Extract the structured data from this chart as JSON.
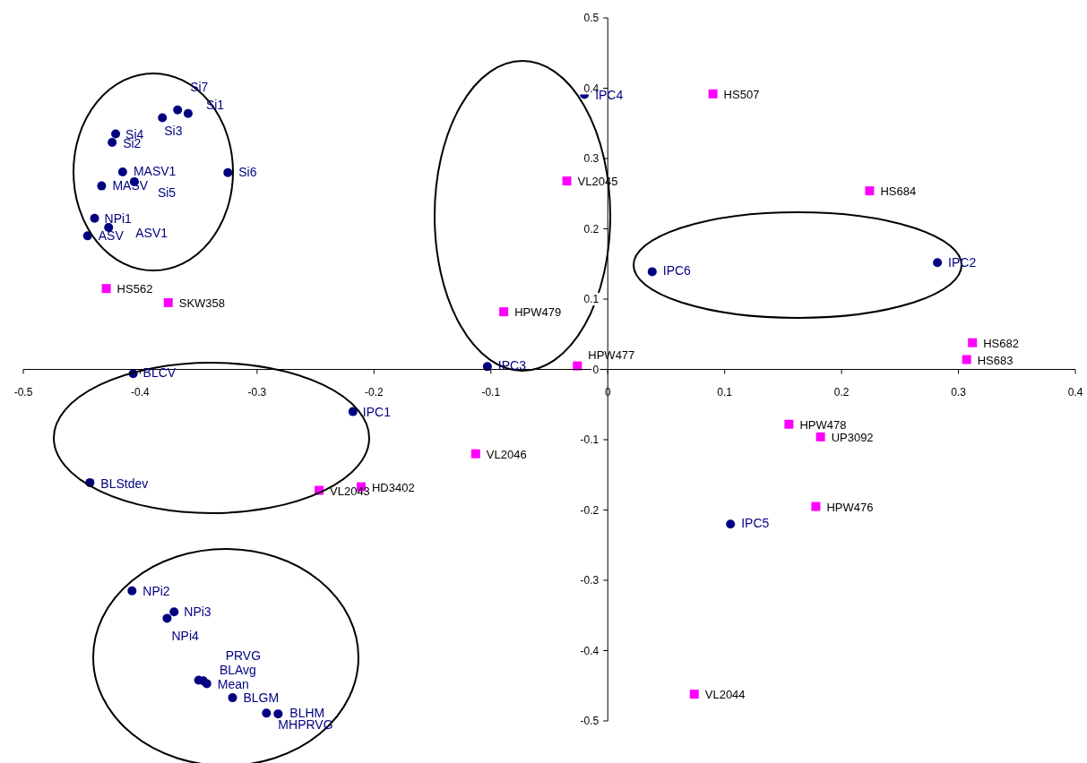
{
  "chart_data": {
    "type": "scatter",
    "xlim": [
      -0.5,
      0.4
    ],
    "ylim": [
      -0.5,
      0.5
    ],
    "xticks": [
      -0.5,
      -0.4,
      -0.3,
      -0.2,
      -0.1,
      0,
      0.1,
      0.2,
      0.3,
      0.4
    ],
    "yticks": [
      -0.5,
      -0.4,
      -0.3,
      -0.2,
      -0.1,
      0,
      0.1,
      0.2,
      0.3,
      0.4,
      0.5
    ],
    "grid": false,
    "legend": false,
    "series": [
      {
        "color": "#000080",
        "marker": "circle",
        "x": [
          -0.368,
          -0.359,
          -0.381,
          -0.421,
          -0.424,
          -0.415,
          -0.405,
          -0.433,
          -0.325,
          -0.439,
          -0.427,
          -0.445,
          -0.406,
          -0.218,
          -0.443,
          -0.407,
          -0.371,
          -0.377,
          -0.35,
          -0.346,
          -0.343,
          -0.321,
          -0.292,
          -0.282,
          -0.02,
          0.038,
          -0.103,
          0.282,
          0.105
        ],
        "values": [
          0.369,
          0.364,
          0.358,
          0.335,
          0.323,
          0.281,
          0.267,
          0.261,
          0.28,
          0.215,
          0.202,
          0.19,
          -0.006,
          -0.06,
          -0.161,
          -0.315,
          -0.345,
          -0.354,
          -0.442,
          -0.443,
          -0.447,
          -0.467,
          -0.489,
          -0.49,
          0.391,
          0.139,
          0.004,
          0.152,
          -0.22
        ],
        "value_labels": [
          "Si7",
          "Si1",
          "Si3",
          "Si4",
          "Si2",
          "MASV1",
          "Si5",
          "MASV",
          "Si6",
          "NPi1",
          "ASV1",
          "ASV",
          "BLCV",
          "IPC1",
          "BLStdev",
          "NPi2",
          "NPi3",
          "NPi4",
          "PRVG",
          "BLAvg",
          "Mean",
          "BLGM",
          "BLHM",
          "MHPRVG",
          "IPC4",
          "IPC6",
          "IPC3",
          "IPC2",
          "IPC5"
        ]
      },
      {
        "color": "#ff00ff",
        "marker": "square",
        "x": [
          -0.429,
          -0.376,
          -0.247,
          -0.211,
          0.09,
          -0.035,
          -0.089,
          -0.026,
          0.224,
          0.312,
          0.307,
          -0.113,
          0.155,
          0.182,
          0.178,
          0.074
        ],
        "values": [
          0.115,
          0.095,
          -0.172,
          -0.167,
          0.392,
          0.268,
          0.082,
          0.005,
          0.254,
          0.038,
          0.014,
          -0.12,
          -0.078,
          -0.096,
          -0.195,
          -0.462
        ],
        "value_labels": [
          "HS562",
          "SKW358",
          "VL2043",
          "HD3402",
          "HS507",
          "VL2045",
          "HPW479",
          "HPW477",
          "HS684",
          "HS682",
          "HS683",
          "VL2046",
          "HPW478",
          "UP3092",
          "HPW476",
          "VL2044"
        ]
      }
    ]
  }
}
